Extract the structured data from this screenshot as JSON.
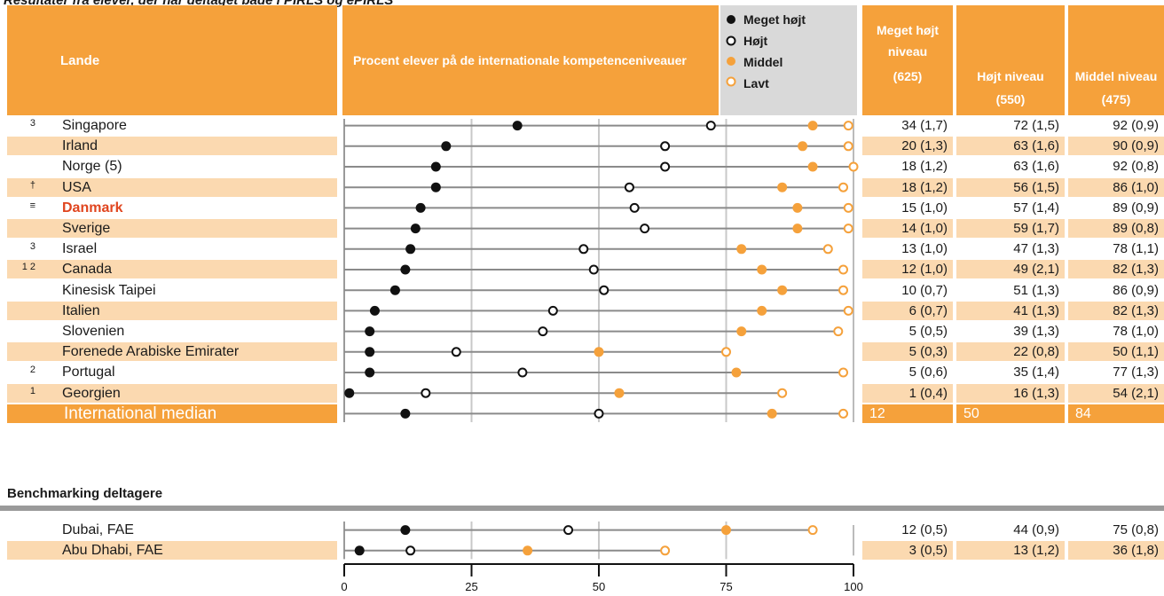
{
  "clipped_title": "Resultater fra elever, der har deltaget både i PIRLS og ePIRLS",
  "header": {
    "lande": "Lande",
    "chart_title": "Procent elever på de internationale kompetenceniveauer",
    "legend": [
      {
        "label": "Meget højt",
        "marker": "filled-black"
      },
      {
        "label": "Højt",
        "marker": "open-black"
      },
      {
        "label": "Middel",
        "marker": "filled-orange"
      },
      {
        "label": "Lavt",
        "marker": "open-orange"
      }
    ],
    "col1": {
      "line1": "Meget højt",
      "line2": "niveau",
      "line3": "(625)"
    },
    "col2": {
      "line1": "Højt niveau",
      "line2": "(550)"
    },
    "col3": {
      "line1": "Middel niveau",
      "line2": "(475)"
    }
  },
  "colors": {
    "orange": "#f5a13b",
    "orange_light": "#fbd9b0",
    "dot_orange": "#f5a13b",
    "danmark": "#e0451f"
  },
  "rows": [
    {
      "note": "3",
      "country": "Singapore",
      "shaded": false,
      "c1": "34 (1,7)",
      "c2": "72 (1,5)",
      "c3": "92 (0,9)"
    },
    {
      "note": "",
      "country": "Irland",
      "shaded": true,
      "c1": "20 (1,3)",
      "c2": "63 (1,6)",
      "c3": "90 (0,9)"
    },
    {
      "note": "",
      "country": "Norge (5)",
      "shaded": false,
      "c1": "18 (1,2)",
      "c2": "63 (1,6)",
      "c3": "92 (0,8)"
    },
    {
      "note": "†",
      "country": "USA",
      "shaded": true,
      "c1": "18 (1,2)",
      "c2": "56 (1,5)",
      "c3": "86 (1,0)"
    },
    {
      "note": "≡",
      "country": "Danmark",
      "shaded": false,
      "highlight": true,
      "c1": "15 (1,0)",
      "c2": "57 (1,4)",
      "c3": "89 (0,9)"
    },
    {
      "note": "",
      "country": "Sverige",
      "shaded": true,
      "c1": "14 (1,0)",
      "c2": "59 (1,7)",
      "c3": "89 (0,8)"
    },
    {
      "note": "3",
      "country": "Israel",
      "shaded": false,
      "c1": "13 (1,0)",
      "c2": "47 (1,3)",
      "c3": "78 (1,1)"
    },
    {
      "note": "1 2",
      "country": "Canada",
      "shaded": true,
      "c1": "12 (1,0)",
      "c2": "49 (2,1)",
      "c3": "82 (1,3)"
    },
    {
      "note": "",
      "country": "Kinesisk Taipei",
      "shaded": false,
      "c1": "10 (0,7)",
      "c2": "51 (1,3)",
      "c3": "86 (0,9)"
    },
    {
      "note": "",
      "country": "Italien",
      "shaded": true,
      "c1": "6 (0,7)",
      "c2": "41 (1,3)",
      "c3": "82 (1,3)"
    },
    {
      "note": "",
      "country": "Slovenien",
      "shaded": false,
      "c1": "5 (0,5)",
      "c2": "39 (1,3)",
      "c3": "78 (1,0)"
    },
    {
      "note": "",
      "country": "Forenede Arabiske Emirater",
      "shaded": true,
      "c1": "5 (0,3)",
      "c2": "22 (0,8)",
      "c3": "50 (1,1)"
    },
    {
      "note": "2",
      "country": "Portugal",
      "shaded": false,
      "c1": "5 (0,6)",
      "c2": "35 (1,4)",
      "c3": "77 (1,3)"
    },
    {
      "note": "1",
      "country": "Georgien",
      "shaded": true,
      "c1": "1 (0,4)",
      "c2": "16 (1,3)",
      "c3": "54 (2,1)"
    }
  ],
  "median": {
    "label": "International median",
    "c1": "12",
    "c2": "50",
    "c3": "84"
  },
  "benchmark": {
    "title": "Benchmarking deltagere",
    "rows": [
      {
        "country": "Dubai, FAE",
        "c1": "12 (0,5)",
        "c2": "44 (0,9)",
        "c3": "75 (0,8)"
      },
      {
        "country": "Abu Dhabi, FAE",
        "c1": "3 (0,5)",
        "c2": "13 (1,2)",
        "c3": "36 (1,8)"
      }
    ]
  },
  "chart_data": {
    "type": "scatter",
    "title": "Procent elever på de internationale kompetenceniveauer",
    "xlim": [
      0,
      100
    ],
    "x_ticks": [
      0,
      25,
      50,
      75,
      100
    ],
    "series_names": [
      "Meget højt",
      "Højt",
      "Middel",
      "Lavt"
    ],
    "countries": [
      "Singapore",
      "Irland",
      "Norge (5)",
      "USA",
      "Danmark",
      "Sverige",
      "Israel",
      "Canada",
      "Kinesisk Taipei",
      "Italien",
      "Slovenien",
      "Forenede Arabiske Emirater",
      "Portugal",
      "Georgien",
      "International median",
      "Dubai, FAE",
      "Abu Dhabi, FAE"
    ],
    "meget_hojt": [
      34,
      20,
      18,
      18,
      15,
      14,
      13,
      12,
      10,
      6,
      5,
      5,
      5,
      1,
      12,
      12,
      3
    ],
    "hojt": [
      72,
      63,
      63,
      56,
      57,
      59,
      47,
      49,
      51,
      41,
      39,
      22,
      35,
      16,
      50,
      44,
      13
    ],
    "middel": [
      92,
      90,
      92,
      86,
      89,
      89,
      78,
      82,
      86,
      82,
      78,
      50,
      77,
      54,
      84,
      75,
      36
    ],
    "lavt": [
      99,
      99,
      100,
      98,
      99,
      99,
      95,
      98,
      98,
      99,
      97,
      75,
      98,
      86,
      98,
      92,
      63
    ]
  }
}
